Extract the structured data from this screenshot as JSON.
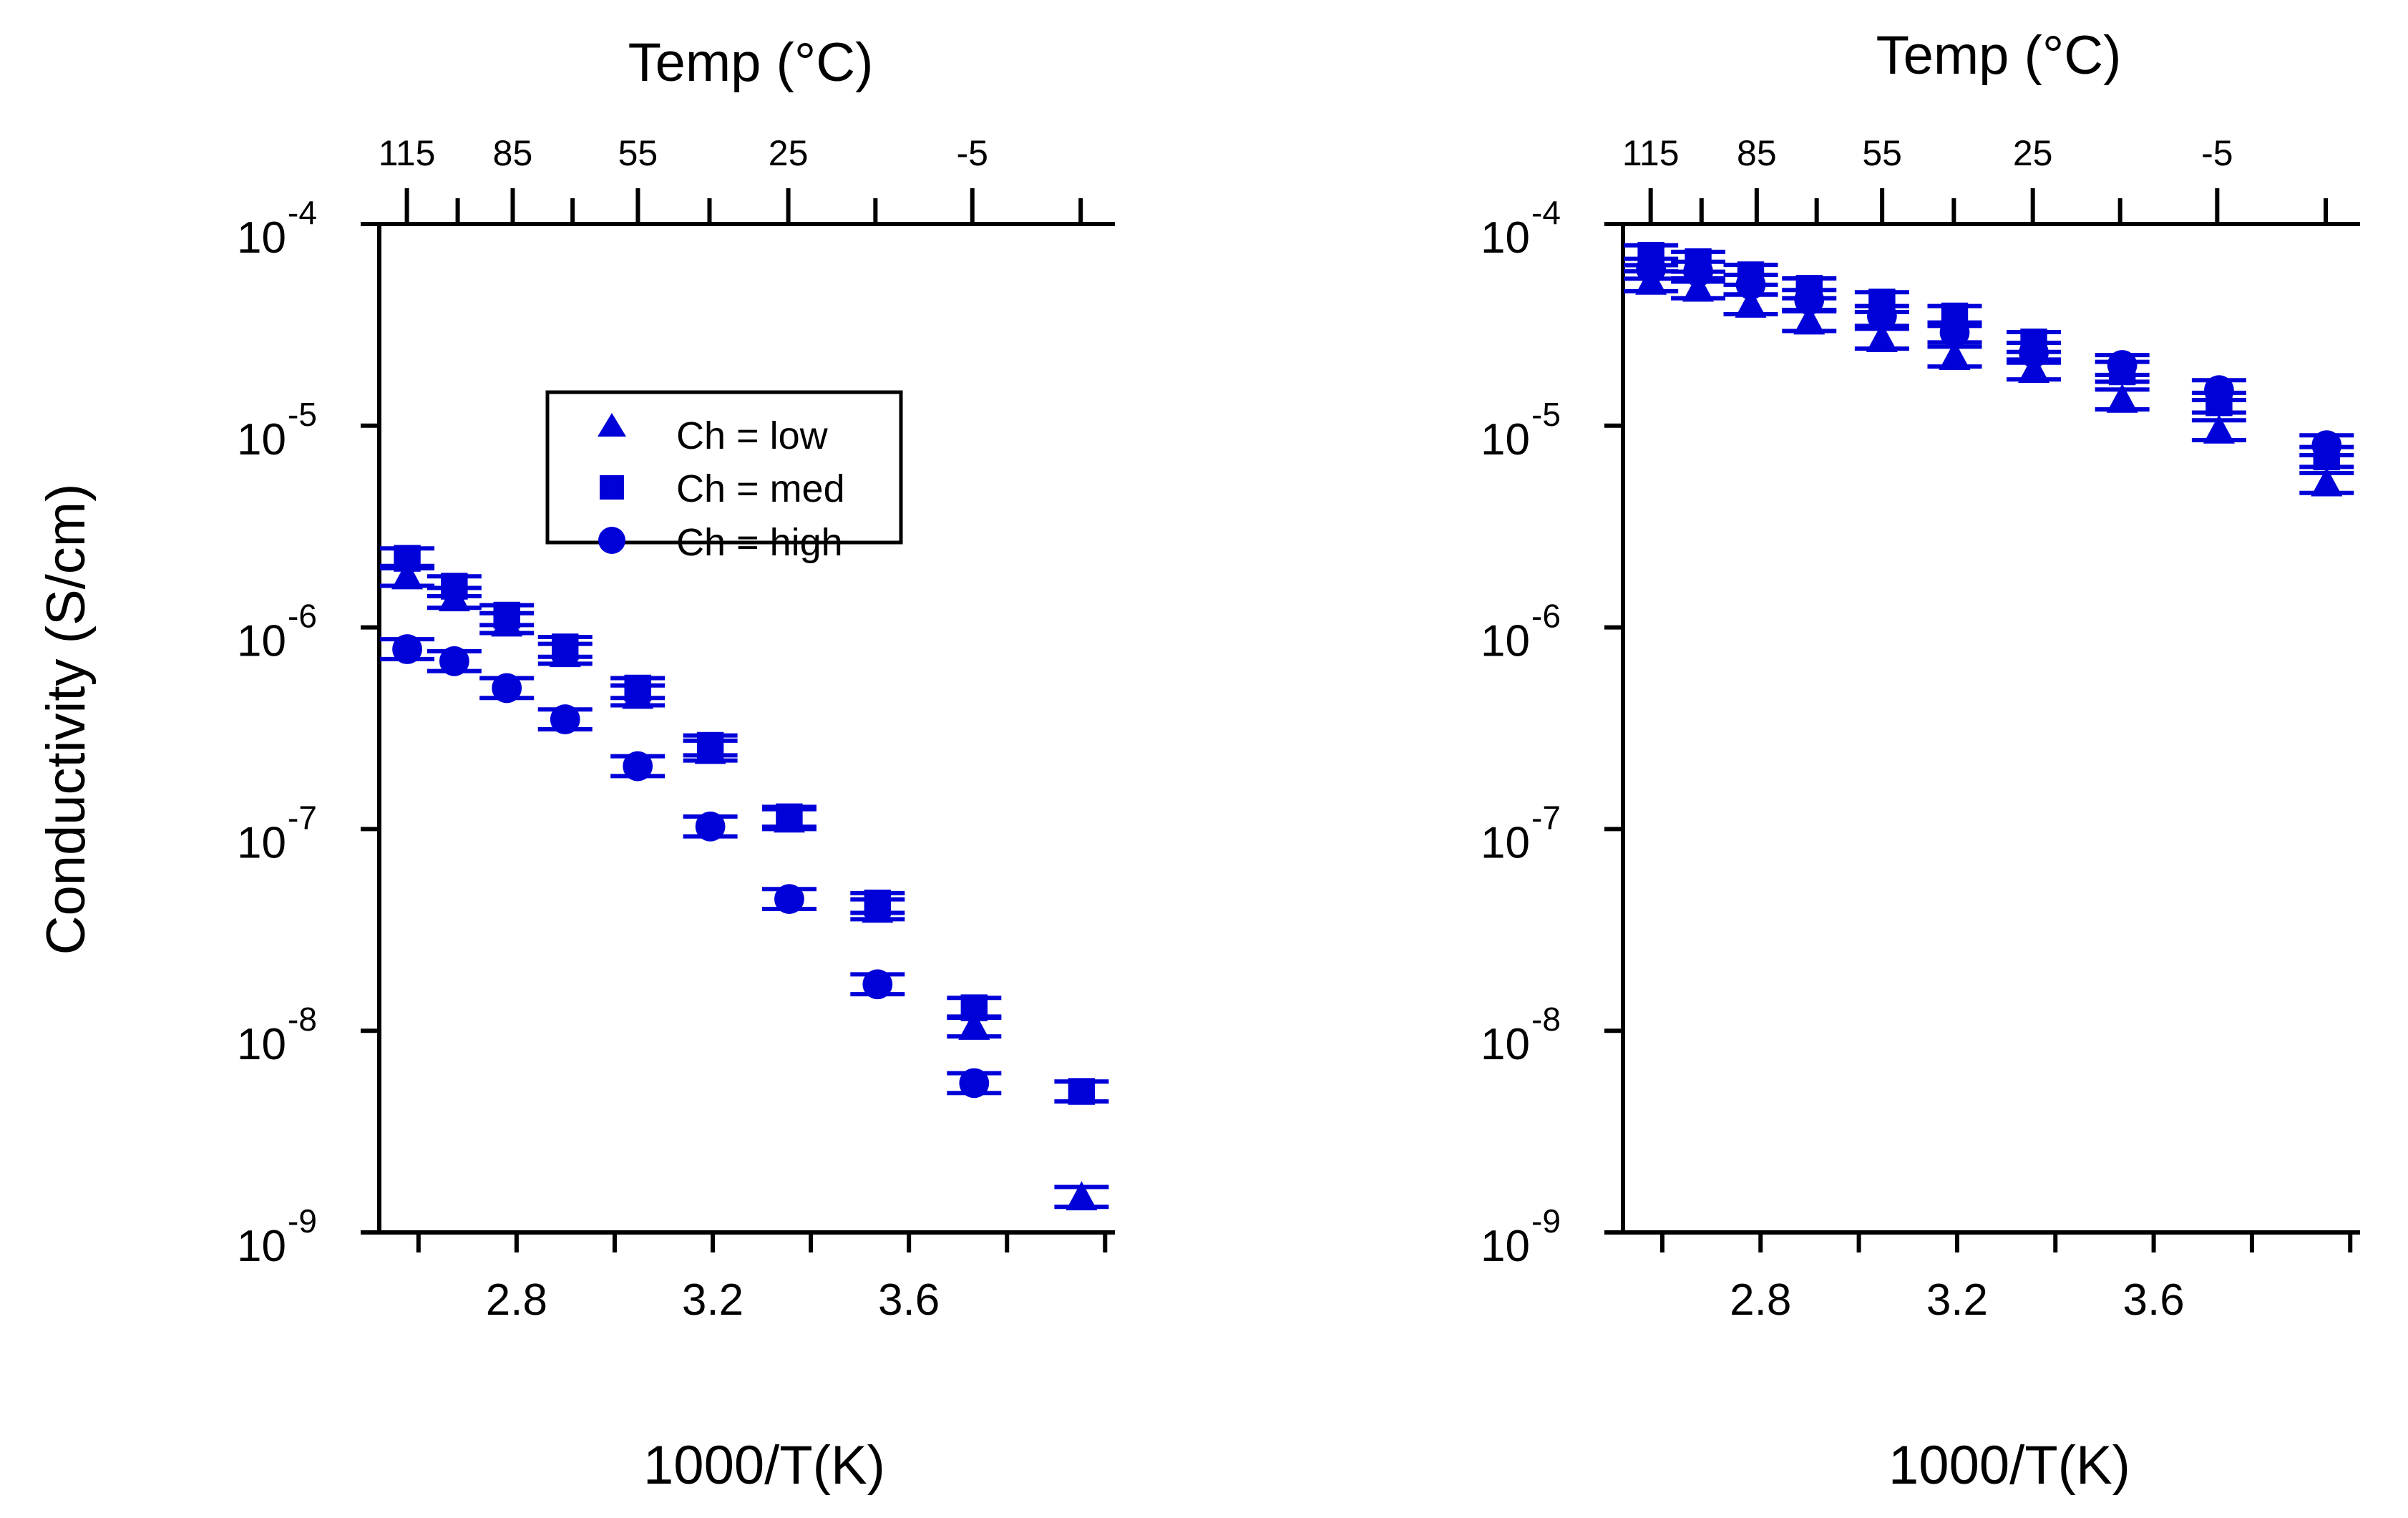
{
  "chart_data": [
    {
      "type": "scatter",
      "title": "",
      "xlabel": "1000/T(K)",
      "ylabel": "Conductivity (S/cm)",
      "top_axis_label": "Temp (°C)",
      "y_scale": "log",
      "ylim": [
        1e-09,
        0.0001
      ],
      "xlim": [
        2.52,
        4.02
      ],
      "x_ticks": [
        2.8,
        3.2,
        3.6
      ],
      "x_tick_labels": [
        "2.8",
        "3.2",
        "3.6"
      ],
      "y_tick_mantissa": [
        "10",
        "10",
        "10",
        "10",
        "10",
        "10"
      ],
      "y_tick_exponents": [
        "-4",
        "-5",
        "-6",
        "-7",
        "-8",
        "-9"
      ],
      "top_ticks_c": [
        115,
        85,
        55,
        25,
        -5
      ],
      "top_tick_labels": [
        "115",
        "85",
        "55",
        "25",
        "-5"
      ],
      "top_minor_ticks_c": [
        100,
        70,
        40,
        10,
        -20
      ],
      "marker_color": "#0000d8",
      "legend": {
        "position": "upper-middle",
        "entries": [
          {
            "marker": "triangle",
            "label": "Ch = low"
          },
          {
            "marker": "square",
            "label": "Ch = med"
          },
          {
            "marker": "circle",
            "label": "Ch = high"
          }
        ]
      },
      "series": [
        {
          "name": "Ch = low",
          "marker": "triangle",
          "x": [
            2.577,
            2.673,
            2.78,
            2.899,
            3.047,
            3.195,
            3.356,
            3.536,
            3.733,
            3.952
          ],
          "y": [
            1.8e-06,
            1.4e-06,
            1.05e-06,
            7.4e-07,
            4.6e-07,
            2.45e-07,
            1.12e-07,
            4e-08,
            1.05e-08,
            1.5e-09
          ],
          "error_frac": 0.12
        },
        {
          "name": "Ch = med",
          "marker": "square",
          "x": [
            2.577,
            2.673,
            2.78,
            2.899,
            3.047,
            3.195,
            3.356,
            3.536,
            3.733,
            3.952
          ],
          "y": [
            2.2e-06,
            1.6e-06,
            1.15e-06,
            8e-07,
            5e-07,
            2.6e-07,
            1.15e-07,
            4.3e-08,
            1.3e-08,
            5e-09
          ],
          "error_frac": 0.12
        },
        {
          "name": "Ch = high",
          "marker": "circle",
          "x": [
            2.577,
            2.673,
            2.78,
            2.899,
            3.047,
            3.195,
            3.356,
            3.536,
            3.733
          ],
          "y": [
            7.8e-07,
            6.8e-07,
            5e-07,
            3.5e-07,
            2.05e-07,
            1.03e-07,
            4.5e-08,
            1.7e-08,
            5.5e-09
          ],
          "error_frac": 0.12
        }
      ]
    },
    {
      "type": "scatter",
      "title": "",
      "xlabel": "1000/T(K)",
      "ylabel": "",
      "top_axis_label": "Temp (°C)",
      "y_scale": "log",
      "ylim": [
        1e-09,
        0.0001
      ],
      "xlim": [
        2.52,
        4.02
      ],
      "x_ticks": [
        2.8,
        3.2,
        3.6
      ],
      "x_tick_labels": [
        "2.8",
        "3.2",
        "3.6"
      ],
      "y_tick_mantissa": [
        "10",
        "10",
        "10",
        "10",
        "10",
        "10"
      ],
      "y_tick_exponents": [
        "-4",
        "-5",
        "-6",
        "-7",
        "-8",
        "-9"
      ],
      "top_ticks_c": [
        115,
        85,
        55,
        25,
        -5
      ],
      "top_tick_labels": [
        "115",
        "85",
        "55",
        "25",
        "-5"
      ],
      "top_minor_ticks_c": [
        100,
        70,
        40,
        10,
        -20
      ],
      "marker_color": "#0000d8",
      "series": [
        {
          "name": "Ch = low",
          "marker": "triangle",
          "x": [
            2.577,
            2.673,
            2.78,
            2.899,
            3.047,
            3.195,
            3.356,
            3.536,
            3.733,
            3.952
          ],
          "y": [
            5.2e-05,
            4.8e-05,
            4e-05,
            3.3e-05,
            2.7e-05,
            2.2e-05,
            1.9e-05,
            1.35e-05,
            9.5e-06,
            5.2e-06
          ],
          "error_frac": 0.12
        },
        {
          "name": "Ch = med",
          "marker": "square",
          "x": [
            2.577,
            2.673,
            2.78,
            2.899,
            3.047,
            3.195,
            3.356,
            3.536,
            3.733,
            3.952
          ],
          "y": [
            7e-05,
            6.5e-05,
            5.6e-05,
            4.8e-05,
            4.1e-05,
            3.5e-05,
            2.6e-05,
            1.85e-05,
            1.3e-05,
            7e-06
          ],
          "error_frac": 0.12
        },
        {
          "name": "Ch = high",
          "marker": "circle",
          "x": [
            2.577,
            2.673,
            2.78,
            2.899,
            3.047,
            3.195,
            3.356,
            3.536,
            3.733,
            3.952
          ],
          "y": [
            6e-05,
            5.8e-05,
            5e-05,
            4.2e-05,
            3.5e-05,
            2.9e-05,
            2.3e-05,
            2e-05,
            1.5e-05,
            8e-06
          ],
          "error_frac": 0.12
        }
      ]
    }
  ]
}
